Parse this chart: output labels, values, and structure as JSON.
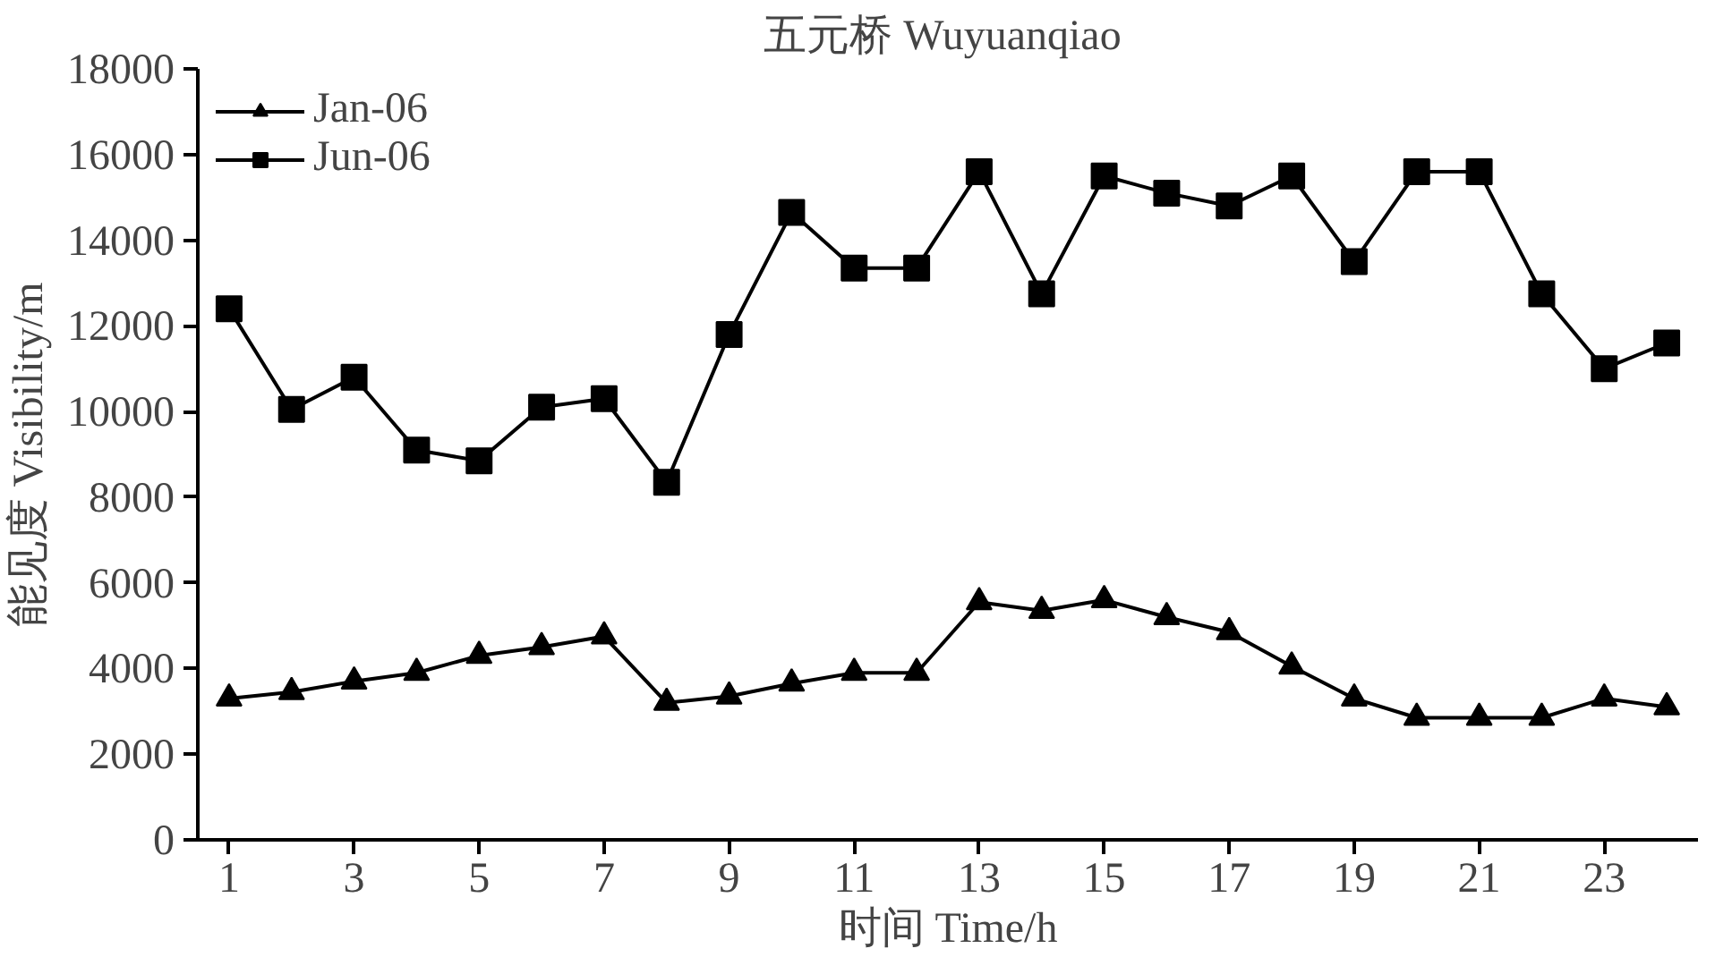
{
  "chart_data": {
    "type": "line",
    "title": "五元桥  Wuyuanqiao",
    "xlabel": "时间 Time/h",
    "ylabel": "能见度 Visibility/m",
    "x": [
      1,
      2,
      3,
      4,
      5,
      6,
      7,
      8,
      9,
      10,
      11,
      12,
      13,
      14,
      15,
      16,
      17,
      18,
      19,
      20,
      21,
      22,
      23,
      24
    ],
    "series": [
      {
        "name": "Jan-06",
        "color": "#000000",
        "marker": "triangle",
        "values": [
          3300,
          3450,
          3700,
          3900,
          4300,
          4500,
          4750,
          3200,
          3350,
          3650,
          3900,
          3900,
          5550,
          5350,
          5600,
          5200,
          4850,
          4050,
          3300,
          2850,
          2850,
          2850,
          3300,
          3100
        ]
      },
      {
        "name": "Jun-06",
        "color": "#000000",
        "marker": "square",
        "values": [
          12400,
          10050,
          10800,
          9100,
          8850,
          10100,
          10300,
          8350,
          11800,
          14650,
          13350,
          13350,
          15600,
          12750,
          15500,
          15100,
          14800,
          15500,
          13500,
          15600,
          15600,
          12750,
          11000,
          11600
        ]
      }
    ],
    "xlim": [
      0.5,
      24.5
    ],
    "xticks": [
      1,
      3,
      5,
      7,
      9,
      11,
      13,
      15,
      17,
      19,
      21,
      23
    ],
    "ylim": [
      0,
      18000
    ],
    "yticks": [
      0,
      2000,
      4000,
      6000,
      8000,
      10000,
      12000,
      14000,
      16000,
      18000
    ],
    "grid": false,
    "legend": "top left",
    "line_style": "solid"
  }
}
